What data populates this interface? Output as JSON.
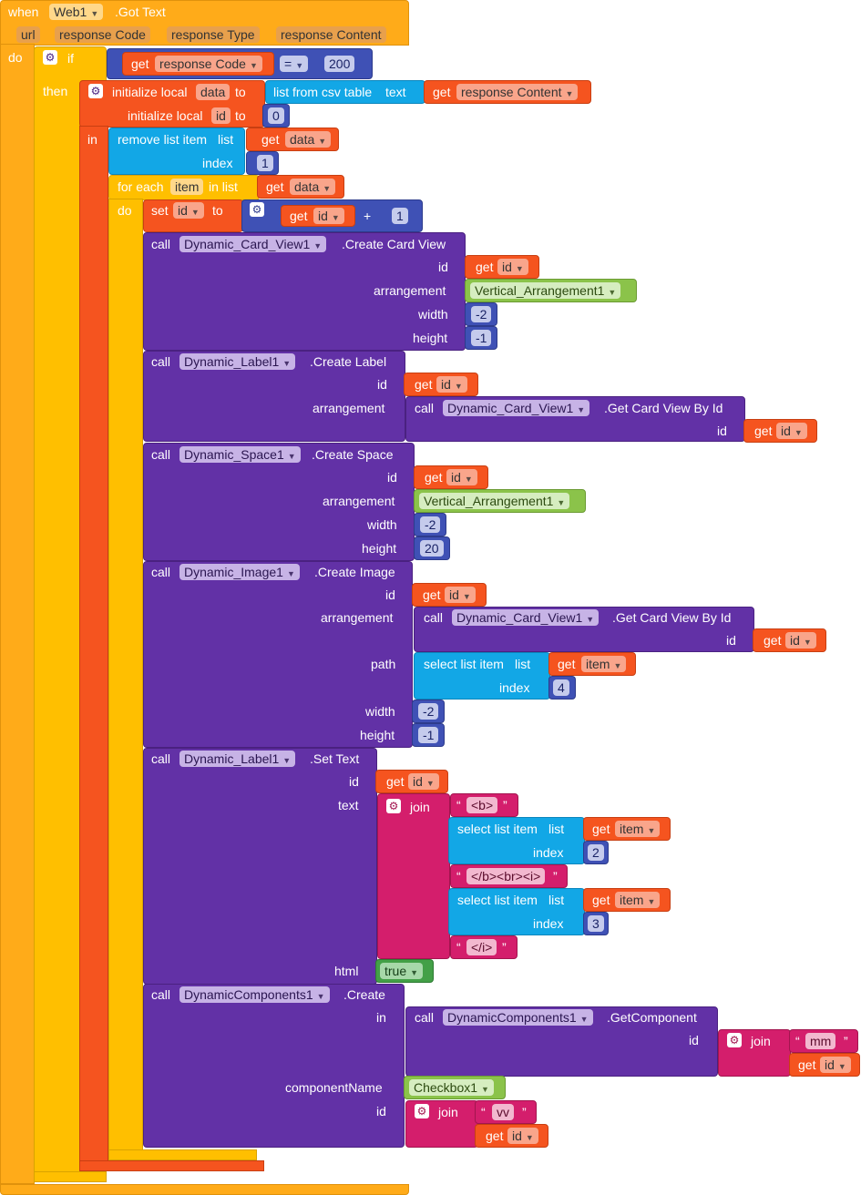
{
  "event": {
    "when": "when",
    "component": "Web1",
    "event": ".Got Text",
    "params": [
      "url",
      "response Code",
      "response Type",
      "response Content"
    ],
    "do": "do"
  },
  "if": {
    "if": "if",
    "then": "then",
    "get": "get",
    "var": "response Code",
    "op": "=",
    "value": "200"
  },
  "init1": {
    "label": "initialize local",
    "name": "data",
    "to": "to",
    "csv": "list from csv table",
    "text": "text",
    "get": "get",
    "var": "response Content"
  },
  "init2": {
    "label": "initialize local",
    "name": "id",
    "to": "to",
    "value": "0",
    "in": "in"
  },
  "remove": {
    "label": "remove list item",
    "list": "list",
    "index": "index",
    "get": "get",
    "var": "data",
    "idx": "1"
  },
  "foreach": {
    "label": "for each",
    "item": "item",
    "inlist": "in list",
    "get": "get",
    "var": "data",
    "do": "do"
  },
  "set": {
    "label": "set",
    "var": "id",
    "to": "to",
    "get": "get",
    "getvar": "id",
    "plus": "+",
    "num": "1"
  },
  "card": {
    "call": "call",
    "comp": "Dynamic_Card_View1",
    "method": ".Create Card View",
    "id_label": "id",
    "get": "get",
    "id_var": "id",
    "arr_label": "arrangement",
    "arr": "Vertical_Arrangement1",
    "w_label": "width",
    "w": "-2",
    "h_label": "height",
    "h": "-1"
  },
  "label1": {
    "call": "call",
    "comp": "Dynamic_Label1",
    "method": ".Create Label",
    "id_label": "id",
    "get": "get",
    "id_var": "id",
    "arr_label": "arrangement",
    "call2": "call",
    "comp2": "Dynamic_Card_View1",
    "method2": ".Get Card View By Id",
    "id2_label": "id",
    "get2": "get",
    "id2_var": "id"
  },
  "space": {
    "call": "call",
    "comp": "Dynamic_Space1",
    "method": ".Create Space",
    "id_label": "id",
    "get": "get",
    "id_var": "id",
    "arr_label": "arrangement",
    "arr": "Vertical_Arrangement1",
    "w_label": "width",
    "w": "-2",
    "h_label": "height",
    "h": "20"
  },
  "image": {
    "call": "call",
    "comp": "Dynamic_Image1",
    "method": ".Create Image",
    "id_label": "id",
    "get": "get",
    "id_var": "id",
    "arr_label": "arrangement",
    "call2": "call",
    "comp2": "Dynamic_Card_View1",
    "method2": ".Get Card View By Id",
    "id2_label": "id",
    "get2": "get",
    "id2_var": "id",
    "path_label": "path",
    "sel": "select list item",
    "list": "list",
    "index": "index",
    "get3": "get",
    "item": "item",
    "idx": "4",
    "w_label": "width",
    "w": "-2",
    "h_label": "height",
    "h": "-1"
  },
  "settext": {
    "call": "call",
    "comp": "Dynamic_Label1",
    "method": ".Set Text",
    "id_label": "id",
    "get": "get",
    "id_var": "id",
    "text_label": "text",
    "join": "join",
    "s1": "<b>",
    "sel": "select list item",
    "list": "list",
    "index": "index",
    "get2": "get",
    "item": "item",
    "idx1": "2",
    "s2": "</b><br><i>",
    "idx2": "3",
    "s3": "</i>",
    "html_label": "html",
    "html": "true"
  },
  "create": {
    "call": "call",
    "comp": "DynamicComponents1",
    "method": ".Create",
    "in_label": "in",
    "call2": "call",
    "comp2": "DynamicComponents1",
    "method2": ".GetComponent",
    "id_label": "id",
    "join": "join",
    "s1": "mm",
    "get": "get",
    "id_var": "id",
    "cn_label": "componentName",
    "cn": "Checkbox1",
    "id2_label": "id",
    "join2": "join",
    "s2": "vv",
    "get2": "get",
    "id2_var": "id"
  }
}
